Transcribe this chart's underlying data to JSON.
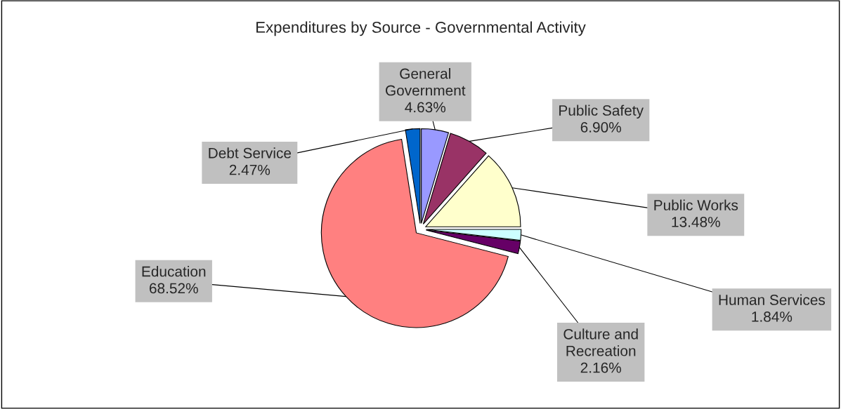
{
  "chart_data": {
    "type": "pie",
    "title": "Expenditures by Source - Governmental Activity",
    "categories": [
      "General Government",
      "Public Safety",
      "Public Works",
      "Human Services",
      "Culture and Recreation",
      "Education",
      "Debt Service"
    ],
    "values": [
      4.63,
      6.9,
      13.48,
      1.84,
      2.16,
      68.52,
      2.47
    ],
    "value_labels": [
      "4.63%",
      "6.90%",
      "13.48%",
      "1.84%",
      "2.16%",
      "68.52%",
      "2.47%"
    ],
    "colors": [
      "#9999ff",
      "#993366",
      "#ffffcc",
      "#ccffff",
      "#660066",
      "#ff8080",
      "#0066cc"
    ],
    "legend": false
  }
}
